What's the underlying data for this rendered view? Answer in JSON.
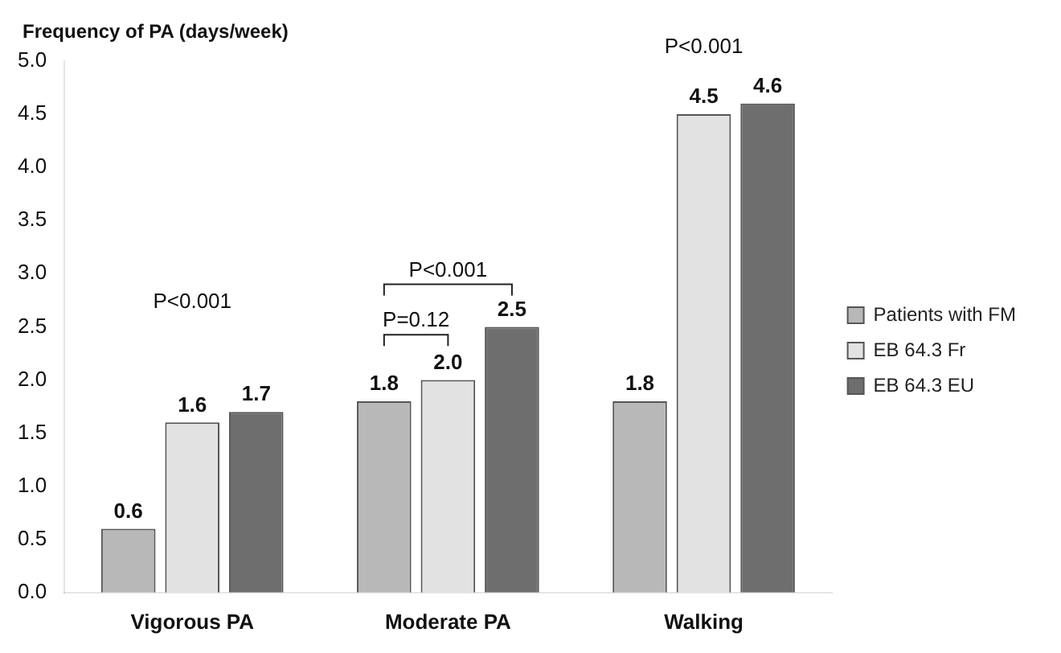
{
  "chart_data": {
    "type": "bar",
    "ylabel": "Frequency of PA (days/week)",
    "categories": [
      "Vigorous PA",
      "Moderate PA",
      "Walking"
    ],
    "series": [
      {
        "name": "Patients with FM",
        "color": "#b8b8b8",
        "values": [
          0.6,
          1.8,
          1.8
        ],
        "value_labels": [
          "0.6",
          "1.8",
          "1.8"
        ]
      },
      {
        "name": "EB 64.3 Fr",
        "color": "#e2e2e2",
        "values": [
          1.6,
          2.0,
          4.5
        ],
        "value_labels": [
          "1.6",
          "2.0",
          "4.5"
        ]
      },
      {
        "name": "EB 64.3 EU",
        "color": "#6e6e6e",
        "values": [
          1.7,
          2.5,
          4.6
        ],
        "value_labels": [
          "1.7",
          "2.5",
          "4.6"
        ]
      }
    ],
    "ylim": [
      0,
      5
    ],
    "yticks": [
      {
        "value": 0,
        "label": "0.0"
      },
      {
        "value": 0.5,
        "label": "0.5"
      },
      {
        "value": 1,
        "label": "1.0"
      },
      {
        "value": 1.5,
        "label": "1.5"
      },
      {
        "value": 2,
        "label": "2.0"
      },
      {
        "value": 2.5,
        "label": "2.5"
      },
      {
        "value": 3,
        "label": "3.0"
      },
      {
        "value": 3.5,
        "label": "3.5"
      },
      {
        "value": 4,
        "label": "4.0"
      },
      {
        "value": 4.5,
        "label": "4.5"
      },
      {
        "value": 5,
        "label": "5.0"
      }
    ],
    "annotations": [
      "P<0.001",
      "P=0.12",
      "P<0.001",
      "P<0.001"
    ],
    "grid": false,
    "legend": "right"
  }
}
